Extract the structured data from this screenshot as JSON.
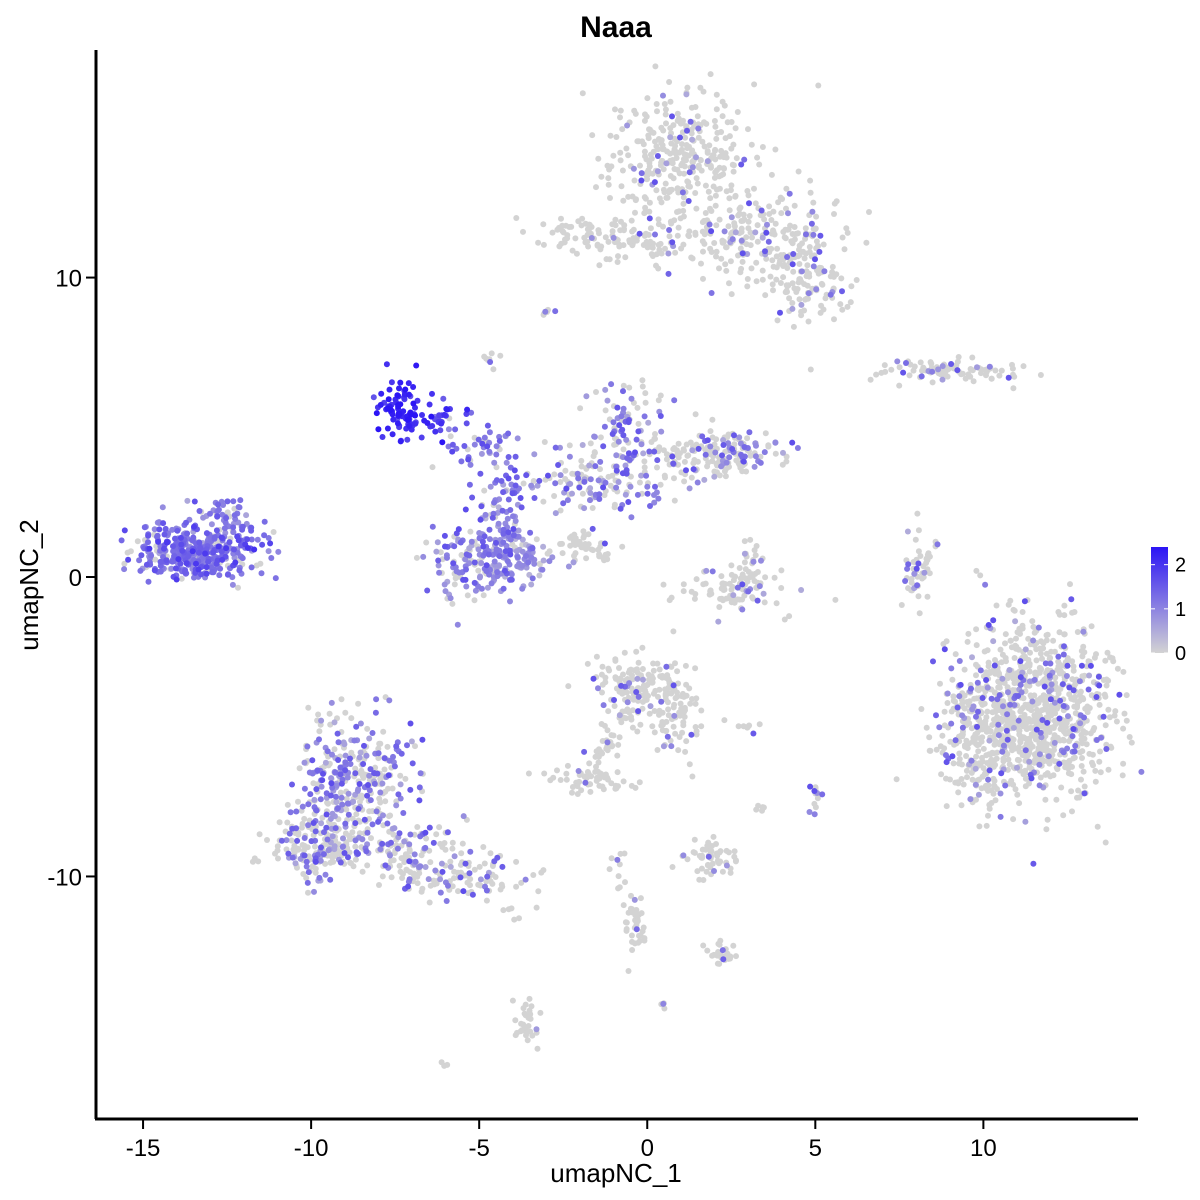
{
  "chart_data": {
    "type": "scatter",
    "title": "Naaa",
    "xlabel": "umapNC_1",
    "ylabel": "umapNC_2",
    "xlim": [
      -16.4,
      14.6
    ],
    "ylim": [
      -18.1,
      17.6
    ],
    "x_ticks": [
      -15,
      -10,
      -5,
      0,
      5,
      10
    ],
    "x_tick_labels": [
      "-15",
      "-10",
      "-5",
      "0",
      "5",
      "10"
    ],
    "y_ticks": [
      -10,
      0,
      10
    ],
    "y_tick_labels": [
      "-10",
      "0",
      "10"
    ],
    "grid": false,
    "color_scale": {
      "low": "#D3D3D3",
      "high": "#2B14F5",
      "min": 0,
      "max": 2.4
    },
    "legend": {
      "position": "right",
      "ticks": [
        0,
        1,
        2
      ],
      "tick_labels": [
        "0",
        "1",
        "2"
      ]
    },
    "clusters": [
      {
        "cx": 0.9,
        "cy": 14.0,
        "sx": 1.1,
        "sy": 1.2,
        "n": 340,
        "expr": 0.08
      },
      {
        "cx": 3.3,
        "cy": 11.3,
        "sx": 1.4,
        "sy": 0.8,
        "n": 240,
        "expr": 0.12
      },
      {
        "cx": 4.8,
        "cy": 9.7,
        "sx": 0.7,
        "sy": 0.6,
        "n": 90,
        "expr": 0.15
      },
      {
        "cx": -1.8,
        "cy": 11.4,
        "sx": 0.8,
        "sy": 0.35,
        "n": 70,
        "expr": 0.03
      },
      {
        "cx": -0.1,
        "cy": 11.1,
        "sx": 0.5,
        "sy": 0.2,
        "n": 25,
        "expr": 0.02
      },
      {
        "cx": -3.0,
        "cy": 8.8,
        "sx": 0.12,
        "sy": 0.08,
        "n": 6,
        "expr": 0.05
      },
      {
        "cx": -4.6,
        "cy": 7.3,
        "sx": 0.15,
        "sy": 0.15,
        "n": 8,
        "expr": 0.1
      },
      {
        "cx": 9.0,
        "cy": 6.9,
        "sx": 1.1,
        "sy": 0.18,
        "n": 90,
        "expr": 0.1
      },
      {
        "cx": -7.3,
        "cy": 5.6,
        "sx": 0.35,
        "sy": 0.45,
        "n": 85,
        "expr": 2.2
      },
      {
        "cx": -6.2,
        "cy": 5.3,
        "sx": 0.5,
        "sy": 0.3,
        "n": 30,
        "expr": 1.8
      },
      {
        "cx": -5.0,
        "cy": 4.3,
        "sx": 0.6,
        "sy": 0.4,
        "n": 45,
        "expr": 1.2
      },
      {
        "cx": -4.3,
        "cy": 2.3,
        "sx": 0.5,
        "sy": 0.9,
        "n": 70,
        "expr": 1.05
      },
      {
        "cx": -5.4,
        "cy": 0.4,
        "sx": 0.7,
        "sy": 0.6,
        "n": 130,
        "expr": 0.7
      },
      {
        "cx": -3.9,
        "cy": 0.7,
        "sx": 0.6,
        "sy": 0.5,
        "n": 110,
        "expr": 0.85
      },
      {
        "cx": -1.5,
        "cy": 3.2,
        "sx": 1.1,
        "sy": 0.6,
        "n": 150,
        "expr": 0.6
      },
      {
        "cx": -0.7,
        "cy": 5.2,
        "sx": 0.6,
        "sy": 0.7,
        "n": 70,
        "expr": 0.55
      },
      {
        "cx": 1.5,
        "cy": 4.0,
        "sx": 1.2,
        "sy": 0.35,
        "n": 150,
        "expr": 0.3
      },
      {
        "cx": 2.6,
        "cy": 4.3,
        "sx": 0.4,
        "sy": 0.4,
        "n": 50,
        "expr": 0.4
      },
      {
        "cx": -1.8,
        "cy": 1.0,
        "sx": 0.6,
        "sy": 0.3,
        "n": 25,
        "expr": 0.05
      },
      {
        "cx": -13.5,
        "cy": 0.9,
        "sx": 0.9,
        "sy": 0.45,
        "n": 380,
        "expr": 1.25
      },
      {
        "cx": -12.4,
        "cy": 1.7,
        "sx": 0.55,
        "sy": 0.55,
        "n": 70,
        "expr": 1.15
      },
      {
        "cx": 2.6,
        "cy": -0.4,
        "sx": 0.7,
        "sy": 0.4,
        "n": 90,
        "expr": 0.18
      },
      {
        "cx": 3.1,
        "cy": 0.7,
        "sx": 0.25,
        "sy": 0.4,
        "n": 20,
        "expr": 0.2
      },
      {
        "cx": 8.0,
        "cy": 0.2,
        "sx": 0.2,
        "sy": 0.7,
        "n": 35,
        "expr": 0.2
      },
      {
        "cx": 11.4,
        "cy": -4.5,
        "sx": 1.2,
        "sy": 1.5,
        "n": 1000,
        "expr": 0.15
      },
      {
        "cx": 9.8,
        "cy": -5.8,
        "sx": 0.5,
        "sy": 1.0,
        "n": 120,
        "expr": 0.15
      },
      {
        "cx": -0.2,
        "cy": -3.8,
        "sx": 0.7,
        "sy": 0.6,
        "n": 170,
        "expr": 0.12
      },
      {
        "cx": 0.9,
        "cy": -4.5,
        "sx": 0.4,
        "sy": 0.7,
        "n": 60,
        "expr": 0.1
      },
      {
        "cx": -1.7,
        "cy": -6.8,
        "sx": 0.6,
        "sy": 0.2,
        "n": 55,
        "expr": 0.03
      },
      {
        "cx": -1.2,
        "cy": -5.7,
        "sx": 0.3,
        "sy": 0.4,
        "n": 15,
        "expr": 0.03
      },
      {
        "cx": 2.0,
        "cy": -9.4,
        "sx": 0.4,
        "sy": 0.3,
        "n": 55,
        "expr": 0.08
      },
      {
        "cx": 5.0,
        "cy": -7.4,
        "sx": 0.12,
        "sy": 0.3,
        "n": 14,
        "expr": 0.3
      },
      {
        "cx": 2.9,
        "cy": -5.0,
        "sx": 0.3,
        "sy": 0.1,
        "n": 8,
        "expr": 0.05
      },
      {
        "cx": 3.4,
        "cy": -7.6,
        "sx": 0.1,
        "sy": 0.2,
        "n": 5,
        "expr": 0.05
      },
      {
        "cx": -8.8,
        "cy": -6.8,
        "sx": 0.9,
        "sy": 1.0,
        "n": 330,
        "expr": 0.55
      },
      {
        "cx": -9.8,
        "cy": -9.0,
        "sx": 0.7,
        "sy": 0.55,
        "n": 190,
        "expr": 0.42
      },
      {
        "cx": -7.2,
        "cy": -9.2,
        "sx": 0.9,
        "sy": 0.5,
        "n": 110,
        "expr": 0.35
      },
      {
        "cx": -5.3,
        "cy": -10.0,
        "sx": 0.9,
        "sy": 0.35,
        "n": 90,
        "expr": 0.35
      },
      {
        "cx": -3.6,
        "cy": -14.8,
        "sx": 0.25,
        "sy": 0.5,
        "n": 30,
        "expr": 0.05
      },
      {
        "cx": -0.4,
        "cy": -11.8,
        "sx": 0.25,
        "sy": 0.5,
        "n": 25,
        "expr": 0.05
      },
      {
        "cx": 2.3,
        "cy": -12.6,
        "sx": 0.3,
        "sy": 0.2,
        "n": 15,
        "expr": 0.1
      },
      {
        "cx": -0.9,
        "cy": -9.8,
        "sx": 0.12,
        "sy": 0.5,
        "n": 10,
        "expr": 0.1
      },
      {
        "cx": 0.5,
        "cy": -14.3,
        "sx": 0.1,
        "sy": 0.1,
        "n": 4,
        "expr": 0.05
      },
      {
        "cx": -6.1,
        "cy": -16.3,
        "sx": 0.1,
        "sy": 0.08,
        "n": 3,
        "expr": 0.0
      },
      {
        "cx": -3.8,
        "cy": -11.2,
        "sx": 0.3,
        "sy": 0.2,
        "n": 6,
        "expr": 0.02
      }
    ],
    "streaks": [
      {
        "from": [
          -2.3,
          1.4
        ],
        "to": [
          -1.2,
          0.6
        ],
        "n": 28,
        "expr": 0.05
      },
      {
        "from": [
          7.9,
          -0.6
        ],
        "to": [
          8.6,
          1.3
        ],
        "n": 20,
        "expr": 0.2
      },
      {
        "from": [
          -1.8,
          -6.4
        ],
        "to": [
          -1.0,
          -5.2
        ],
        "n": 10,
        "expr": 0.05
      },
      {
        "from": [
          -0.5,
          -10.5
        ],
        "to": [
          -0.2,
          -12.2
        ],
        "n": 12,
        "expr": 0.05
      },
      {
        "from": [
          1.5,
          -12.3
        ],
        "to": [
          2.4,
          -12.7
        ],
        "n": 10,
        "expr": 0.08
      }
    ]
  }
}
